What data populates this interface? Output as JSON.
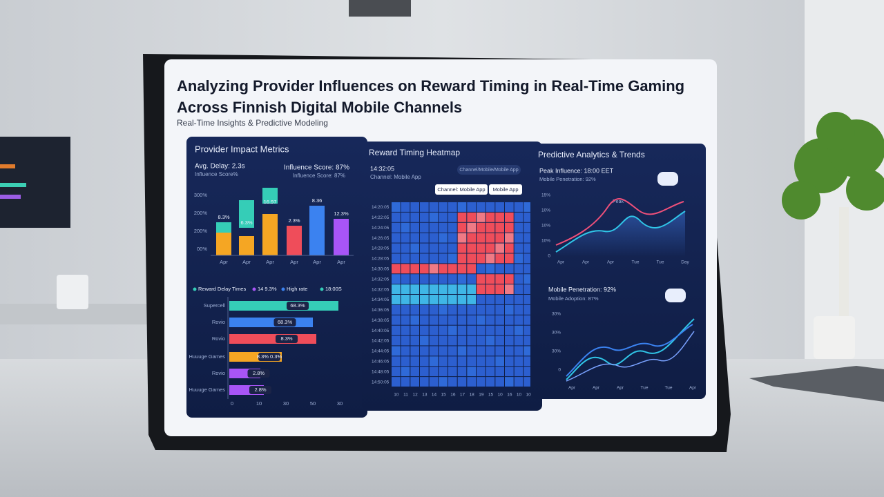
{
  "header": {
    "title_line1": "Analyzing Provider Influences on Reward Timing in Real-Time Gaming",
    "title_line2": "Across Finnish Digital Mobile Channels",
    "subtitle": "Real-Time Insights & Predictive Modeling"
  },
  "provider_panel": {
    "title": "Provider Impact Metrics",
    "avg_delay": "Avg. Delay: 2.3s",
    "avg_delay_sub": "Influence Score%",
    "influence": "Influence Score: 87%",
    "influence_sub": "Influence Score: 87%",
    "y_ticks": [
      "300%",
      "200%",
      "200%",
      "00%"
    ],
    "bar_labels": [
      "8.3%",
      "6.3%",
      "16.97",
      "2.3%",
      "8.36",
      "12.3%"
    ],
    "x_labels": [
      "Apr",
      "Apr",
      "Apr",
      "Apr",
      "Apr",
      "Apr"
    ],
    "legend": [
      "Reward Delay Times",
      "14 9.3%",
      "High rate",
      "18:00S"
    ],
    "providers": [
      "Supercell",
      "Rovio",
      "Rovio",
      "Huuuge Games",
      "Rovio",
      "Huuuge Games"
    ],
    "provider_labels": [
      "68.3%",
      "68.3%",
      "8.3%",
      "8.3% 0.3%",
      "2.8%",
      "2.8%"
    ],
    "x_axis": [
      "0",
      "10",
      "30",
      "50",
      "30"
    ]
  },
  "heatmap_panel": {
    "title": "Reward Timing Heatmap",
    "time": "14:32:05",
    "channel": "Channel: Mobile App",
    "search": "Channel/Mobile/Mobile App",
    "tabs": [
      "Channel: Mobile App",
      "Mobile App"
    ],
    "rows": [
      "14:20:05",
      "14:22:05",
      "14:24:05",
      "14:26:05",
      "14:28:05",
      "14:28:05",
      "14:30:05",
      "14:32:05",
      "14:32:05",
      "14:34:05",
      "14:36:05",
      "14:38:05",
      "14:40:05",
      "14:42:05",
      "14:44:05",
      "14:46:05",
      "14:48:05",
      "14:50:05"
    ],
    "cols": [
      "10",
      "11",
      "12",
      "13",
      "14",
      "15",
      "16",
      "17",
      "18",
      "19",
      "15",
      "10",
      "16",
      "10",
      "10"
    ]
  },
  "trends_panel": {
    "title": "Predictive Analytics & Trends",
    "peak": "Peak Influence: 18:00 EET",
    "peak_sub": "Mobile Penetration: 92%",
    "peak_note": "Peak",
    "upper_ticks": [
      "15%",
      "10%",
      "10%",
      "10%",
      "0"
    ],
    "upper_x": [
      "Apr",
      "Apr",
      "Apr",
      "Tue",
      "Tue",
      "Day"
    ],
    "mobile": "Mobile Penetration: 92%",
    "mobile_sub": "Mobile Adoption: 87%",
    "lower_ticks": [
      "30%",
      "30%",
      "30%",
      "0"
    ],
    "lower_x": [
      "Apr",
      "Apr",
      "Apr",
      "Tue",
      "Tue",
      "Apr"
    ]
  }
}
